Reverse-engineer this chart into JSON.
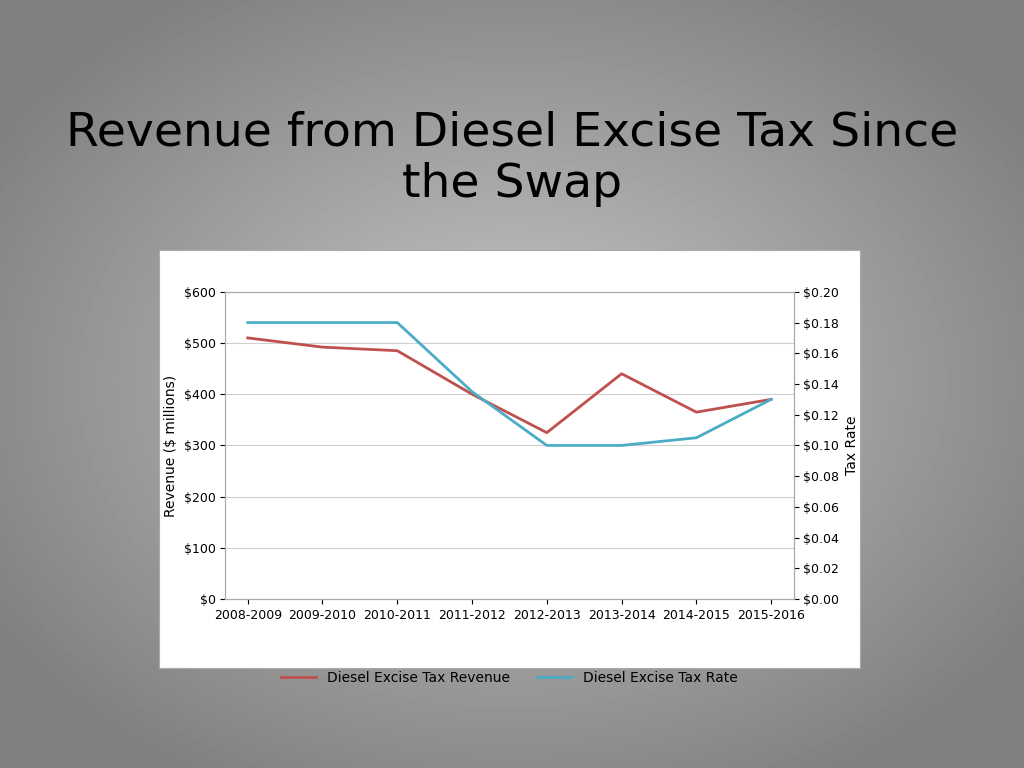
{
  "title": "Revenue from Diesel Excise Tax Since\nthe Swap",
  "title_fontsize": 34,
  "categories": [
    "2008-2009",
    "2009-2010",
    "2010-2011",
    "2011-2012",
    "2012-2013",
    "2013-2014",
    "2014-2015",
    "2015-2016"
  ],
  "revenue": [
    510,
    492,
    485,
    400,
    325,
    440,
    365,
    390
  ],
  "tax_rate": [
    0.18,
    0.18,
    0.18,
    0.135,
    0.1,
    0.1,
    0.105,
    0.13
  ],
  "revenue_color": "#C0504D",
  "tax_rate_color": "#4BACC6",
  "revenue_label": "Diesel Excise Tax Revenue",
  "tax_rate_label": "Diesel Excise Tax Rate",
  "ylabel_left": "Revenue ($ millions)",
  "ylabel_right": "Tax Rate",
  "ylim_left": [
    0,
    600
  ],
  "ylim_right": [
    0.0,
    0.2
  ],
  "yticks_left": [
    0,
    100,
    200,
    300,
    400,
    500,
    600
  ],
  "yticks_right": [
    0.0,
    0.02,
    0.04,
    0.06,
    0.08,
    0.1,
    0.12,
    0.14,
    0.16,
    0.18,
    0.2
  ],
  "plot_bg_color": "#ffffff",
  "line_width": 2.0,
  "legend_fontsize": 10,
  "tick_fontsize": 9,
  "axis_label_fontsize": 10
}
